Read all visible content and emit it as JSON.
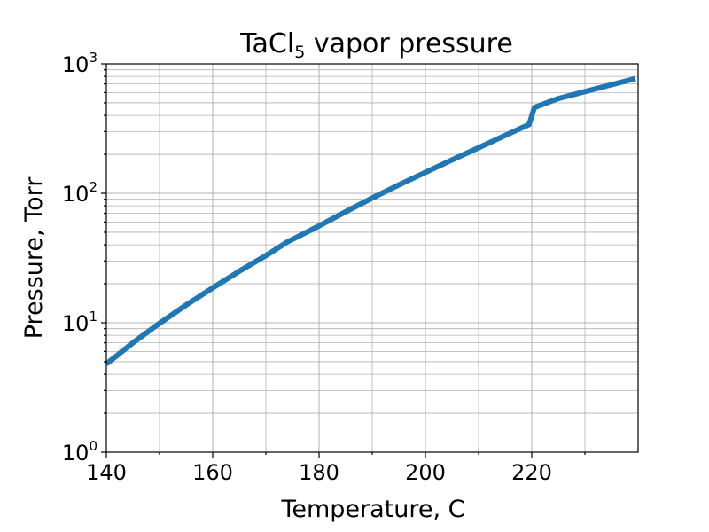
{
  "chart_data": {
    "type": "line",
    "title": {
      "main": "TaCl",
      "subscript": "5",
      "rest": " vapor pressure"
    },
    "xlabel": "Temperature, C",
    "ylabel": "Pressure, Torr",
    "xlim": [
      140,
      240
    ],
    "ylim": [
      1,
      1000
    ],
    "yscale": "log",
    "grid": true,
    "x_major_ticks": [
      {
        "value": 140,
        "label": "140"
      },
      {
        "value": 160,
        "label": "160"
      },
      {
        "value": 180,
        "label": "180"
      },
      {
        "value": 200,
        "label": "200"
      },
      {
        "value": 220,
        "label": "220"
      }
    ],
    "x_minor_ticks": [
      150,
      170,
      190,
      210,
      230
    ],
    "y_major_ticks": [
      {
        "value": 1,
        "base": "10",
        "exp": "0"
      },
      {
        "value": 10,
        "base": "10",
        "exp": "1"
      },
      {
        "value": 100,
        "base": "10",
        "exp": "2"
      },
      {
        "value": 1000,
        "base": "10",
        "exp": "3"
      }
    ],
    "series": [
      {
        "color": "#1f77b4",
        "x": [
          140,
          145,
          150,
          155,
          160,
          165,
          170,
          174,
          180,
          185,
          190,
          195,
          200,
          205,
          210,
          215,
          219.5,
          220.5,
          225,
          230,
          235,
          239.5
        ],
        "y": [
          4.8,
          7.0,
          9.9,
          13.7,
          18.6,
          25.0,
          33.0,
          42.0,
          56.0,
          72.0,
          92.0,
          116.0,
          145.0,
          181.0,
          225.0,
          280.0,
          340.0,
          460.0,
          540.0,
          610.0,
          690.0,
          770.0
        ]
      }
    ]
  }
}
